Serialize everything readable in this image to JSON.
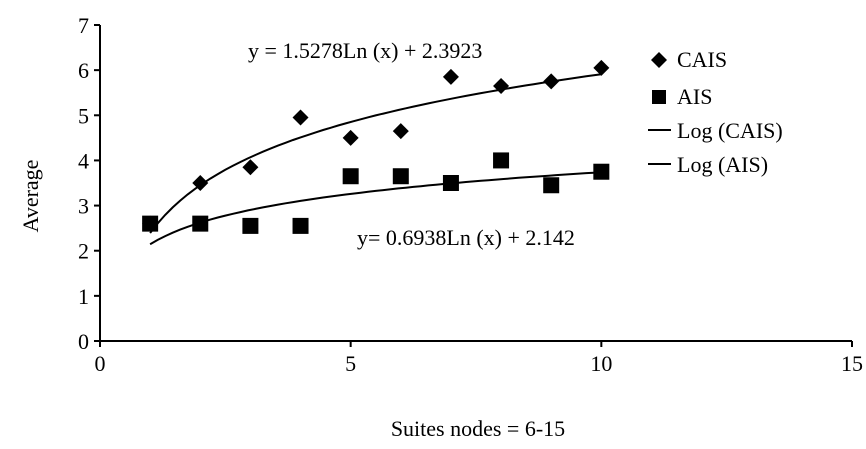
{
  "chart_data": {
    "type": "scatter",
    "xlabel": "Suites nodes = 6-15",
    "ylabel": "Average",
    "xlim": [
      0,
      15
    ],
    "ylim": [
      0,
      7
    ],
    "x_ticks": [
      0,
      5,
      10,
      15
    ],
    "y_ticks": [
      0,
      1,
      2,
      3,
      4,
      5,
      6,
      7
    ],
    "grid": false,
    "legend_position": "right",
    "legend": [
      {
        "label": "CAIS",
        "marker": "diamond"
      },
      {
        "label": "AIS",
        "marker": "square"
      },
      {
        "label": "Log (CAIS)",
        "marker": "line"
      },
      {
        "label": "Log (AIS)",
        "marker": "line"
      }
    ],
    "series": [
      {
        "name": "CAIS",
        "marker": "diamond",
        "x": [
          1,
          2,
          3,
          4,
          5,
          6,
          7,
          8,
          9,
          10
        ],
        "y": [
          2.6,
          3.5,
          3.85,
          4.95,
          4.5,
          4.65,
          5.85,
          5.65,
          5.75,
          6.05
        ]
      },
      {
        "name": "AIS",
        "marker": "square",
        "x": [
          1,
          2,
          3,
          4,
          5,
          6,
          7,
          8,
          9,
          10
        ],
        "y": [
          2.6,
          2.6,
          2.55,
          2.55,
          3.65,
          3.65,
          3.5,
          4.0,
          3.45,
          3.75
        ]
      }
    ],
    "trendlines": [
      {
        "name": "Log (CAIS)",
        "a": 1.5278,
        "b": 2.3923,
        "x_range": [
          1,
          10
        ]
      },
      {
        "name": "Log (AIS)",
        "a": 0.6938,
        "b": 2.142,
        "x_range": [
          1,
          10
        ]
      }
    ],
    "annotations": [
      "y = 1.5278Ln (x) + 2.3923",
      "y= 0.6938Ln (x) + 2.142"
    ],
    "colors": {
      "markers": "#000000",
      "lines": "#000000",
      "background": "#ffffff"
    }
  }
}
